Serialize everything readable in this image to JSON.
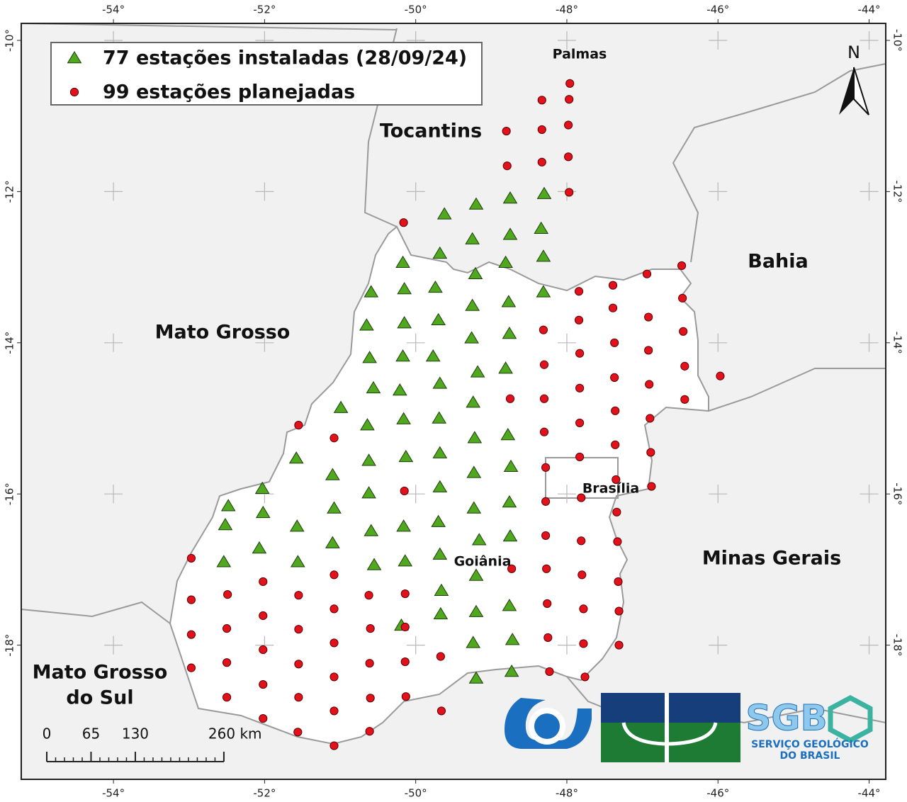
{
  "map": {
    "xlim": [
      -55.22,
      -43.78
    ],
    "ylim": [
      -19.775,
      -9.775
    ],
    "xticks": [
      {
        "value": -54,
        "label": "-54°"
      },
      {
        "value": -52,
        "label": "-52°"
      },
      {
        "value": -50,
        "label": "-50°"
      },
      {
        "value": -48,
        "label": "-48°"
      },
      {
        "value": -46,
        "label": "-46°"
      },
      {
        "value": -44,
        "label": "-44°"
      }
    ],
    "yticks": [
      {
        "value": -10,
        "label": "-10°"
      },
      {
        "value": -12,
        "label": "-12°"
      },
      {
        "value": -14,
        "label": "-14°"
      },
      {
        "value": -16,
        "label": "-16°"
      },
      {
        "value": -18,
        "label": "-18°"
      }
    ],
    "series": [
      {
        "name": "77 estações instaladas (28/09/24)",
        "marker": "triangle",
        "color": "#4fa81e",
        "points": [
          [
            -49.2,
            -12.17
          ],
          [
            -49.62,
            -12.3
          ],
          [
            -48.75,
            -12.09
          ],
          [
            -48.3,
            -12.03
          ],
          [
            -49.25,
            -12.63
          ],
          [
            -48.75,
            -12.57
          ],
          [
            -48.34,
            -12.49
          ],
          [
            -49.68,
            -12.82
          ],
          [
            -48.81,
            -12.94
          ],
          [
            -48.31,
            -12.86
          ],
          [
            -50.17,
            -12.94
          ],
          [
            -49.21,
            -13.09
          ],
          [
            -50.59,
            -13.33
          ],
          [
            -50.15,
            -13.29
          ],
          [
            -49.74,
            -13.27
          ],
          [
            -48.31,
            -13.33
          ],
          [
            -49.25,
            -13.51
          ],
          [
            -48.77,
            -13.46
          ],
          [
            -50.65,
            -13.77
          ],
          [
            -50.15,
            -13.74
          ],
          [
            -49.7,
            -13.7
          ],
          [
            -49.26,
            -13.94
          ],
          [
            -48.76,
            -13.88
          ],
          [
            -50.61,
            -14.2
          ],
          [
            -50.17,
            -14.18
          ],
          [
            -49.77,
            -14.18
          ],
          [
            -49.18,
            -14.39
          ],
          [
            -48.81,
            -14.34
          ],
          [
            -50.56,
            -14.6
          ],
          [
            -50.21,
            -14.63
          ],
          [
            -49.68,
            -14.54
          ],
          [
            -50.99,
            -14.86
          ],
          [
            -49.24,
            -14.79
          ],
          [
            -50.64,
            -15.09
          ],
          [
            -50.16,
            -15.01
          ],
          [
            -49.69,
            -15.0
          ],
          [
            -49.22,
            -15.26
          ],
          [
            -48.78,
            -15.22
          ],
          [
            -51.58,
            -15.53
          ],
          [
            -50.62,
            -15.56
          ],
          [
            -50.13,
            -15.51
          ],
          [
            -49.68,
            -15.46
          ],
          [
            -51.1,
            -15.75
          ],
          [
            -49.23,
            -15.72
          ],
          [
            -48.74,
            -15.64
          ],
          [
            -52.03,
            -15.93
          ],
          [
            -50.62,
            -15.99
          ],
          [
            -49.68,
            -15.91
          ],
          [
            -52.48,
            -16.16
          ],
          [
            -52.02,
            -16.25
          ],
          [
            -51.08,
            -16.19
          ],
          [
            -49.23,
            -16.19
          ],
          [
            -48.76,
            -16.11
          ],
          [
            -52.52,
            -16.41
          ],
          [
            -51.57,
            -16.43
          ],
          [
            -50.59,
            -16.49
          ],
          [
            -50.16,
            -16.43
          ],
          [
            -49.7,
            -16.37
          ],
          [
            -49.16,
            -16.61
          ],
          [
            -48.75,
            -16.56
          ],
          [
            -52.07,
            -16.72
          ],
          [
            -51.1,
            -16.65
          ],
          [
            -52.54,
            -16.9
          ],
          [
            -51.56,
            -16.9
          ],
          [
            -50.55,
            -16.94
          ],
          [
            -50.14,
            -16.89
          ],
          [
            -49.68,
            -16.8
          ],
          [
            -49.2,
            -17.08
          ],
          [
            -49.66,
            -17.28
          ],
          [
            -49.67,
            -17.59
          ],
          [
            -49.2,
            -17.56
          ],
          [
            -48.76,
            -17.48
          ],
          [
            -50.19,
            -17.74
          ],
          [
            -49.24,
            -17.97
          ],
          [
            -48.72,
            -17.93
          ],
          [
            -49.2,
            -18.44
          ],
          [
            -48.73,
            -18.35
          ]
        ]
      },
      {
        "name": "99 estações planejadas",
        "marker": "circle",
        "color": "#e3111b",
        "points": [
          [
            -47.96,
            -10.57
          ],
          [
            -48.33,
            -10.79
          ],
          [
            -47.97,
            -10.78
          ],
          [
            -48.8,
            -11.2
          ],
          [
            -48.33,
            -11.18
          ],
          [
            -47.98,
            -11.12
          ],
          [
            -48.79,
            -11.66
          ],
          [
            -48.33,
            -11.61
          ],
          [
            -47.98,
            -11.54
          ],
          [
            -47.97,
            -12.01
          ],
          [
            -50.16,
            -12.41
          ],
          [
            -46.48,
            -12.98
          ],
          [
            -46.94,
            -13.09
          ],
          [
            -47.39,
            -13.24
          ],
          [
            -47.84,
            -13.32
          ],
          [
            -46.47,
            -13.41
          ],
          [
            -47.39,
            -13.54
          ],
          [
            -48.31,
            -13.83
          ],
          [
            -47.84,
            -13.7
          ],
          [
            -46.92,
            -13.66
          ],
          [
            -46.46,
            -13.85
          ],
          [
            -47.37,
            -14.0
          ],
          [
            -47.83,
            -14.14
          ],
          [
            -46.92,
            -14.1
          ],
          [
            -48.3,
            -14.29
          ],
          [
            -47.37,
            -14.46
          ],
          [
            -46.44,
            -14.31
          ],
          [
            -45.97,
            -14.44
          ],
          [
            -48.75,
            -14.74
          ],
          [
            -48.3,
            -14.74
          ],
          [
            -47.83,
            -14.6
          ],
          [
            -46.91,
            -14.55
          ],
          [
            -46.44,
            -14.75
          ],
          [
            -47.36,
            -14.9
          ],
          [
            -47.83,
            -15.06
          ],
          [
            -46.9,
            -15.0
          ],
          [
            -51.55,
            -15.09
          ],
          [
            -51.08,
            -15.26
          ],
          [
            -48.3,
            -15.18
          ],
          [
            -47.36,
            -15.35
          ],
          [
            -46.89,
            -15.45
          ],
          [
            -48.28,
            -15.65
          ],
          [
            -47.83,
            -15.51
          ],
          [
            -47.35,
            -15.81
          ],
          [
            -46.88,
            -15.9
          ],
          [
            -50.15,
            -15.96
          ],
          [
            -48.28,
            -16.1
          ],
          [
            -47.81,
            -16.05
          ],
          [
            -47.34,
            -16.24
          ],
          [
            -52.97,
            -16.85
          ],
          [
            -48.28,
            -16.55
          ],
          [
            -47.81,
            -16.62
          ],
          [
            -47.33,
            -16.63
          ],
          [
            -48.73,
            -16.99
          ],
          [
            -48.27,
            -16.99
          ],
          [
            -47.8,
            -17.07
          ],
          [
            -47.32,
            -17.16
          ],
          [
            -52.97,
            -17.4
          ],
          [
            -52.49,
            -17.33
          ],
          [
            -52.02,
            -17.16
          ],
          [
            -51.55,
            -17.34
          ],
          [
            -51.08,
            -17.07
          ],
          [
            -50.62,
            -17.34
          ],
          [
            -50.14,
            -17.32
          ],
          [
            -48.26,
            -17.45
          ],
          [
            -47.78,
            -17.52
          ],
          [
            -47.31,
            -17.55
          ],
          [
            -52.97,
            -17.86
          ],
          [
            -52.5,
            -17.78
          ],
          [
            -52.02,
            -17.61
          ],
          [
            -51.55,
            -17.79
          ],
          [
            -51.08,
            -17.52
          ],
          [
            -50.6,
            -17.78
          ],
          [
            -50.14,
            -17.76
          ],
          [
            -47.78,
            -17.98
          ],
          [
            -48.25,
            -17.9
          ],
          [
            -47.31,
            -18.0
          ],
          [
            -52.97,
            -18.3
          ],
          [
            -52.5,
            -18.23
          ],
          [
            -52.02,
            -18.06
          ],
          [
            -51.55,
            -18.25
          ],
          [
            -51.08,
            -17.97
          ],
          [
            -50.61,
            -18.24
          ],
          [
            -50.14,
            -18.22
          ],
          [
            -49.67,
            -18.15
          ],
          [
            -48.23,
            -18.35
          ],
          [
            -47.76,
            -18.42
          ],
          [
            -52.5,
            -18.69
          ],
          [
            -52.02,
            -18.52
          ],
          [
            -51.55,
            -18.69
          ],
          [
            -51.08,
            -18.42
          ],
          [
            -50.6,
            -18.7
          ],
          [
            -50.13,
            -18.68
          ],
          [
            -49.66,
            -18.87
          ],
          [
            -52.02,
            -18.97
          ],
          [
            -51.56,
            -19.15
          ],
          [
            -51.08,
            -18.87
          ],
          [
            -50.61,
            -19.14
          ],
          [
            -51.08,
            -19.33
          ]
        ]
      }
    ],
    "places": [
      "Palmas",
      "Tocantins",
      "Bahia",
      "Mato Grosso",
      [
        "Mato Grosso",
        "do Sul"
      ],
      "Brasília",
      "Goiânia",
      "Minas Gerais"
    ],
    "north": "N",
    "scale_bar": {
      "ticks": [
        0,
        65,
        130,
        {
          "value": 260,
          "label": "260 km"
        }
      ]
    }
  },
  "logos": {
    "sgb": "SGB",
    "sgb_name": [
      "SERVIÇO GEOLÓGICO",
      "DO BRASIL"
    ]
  }
}
